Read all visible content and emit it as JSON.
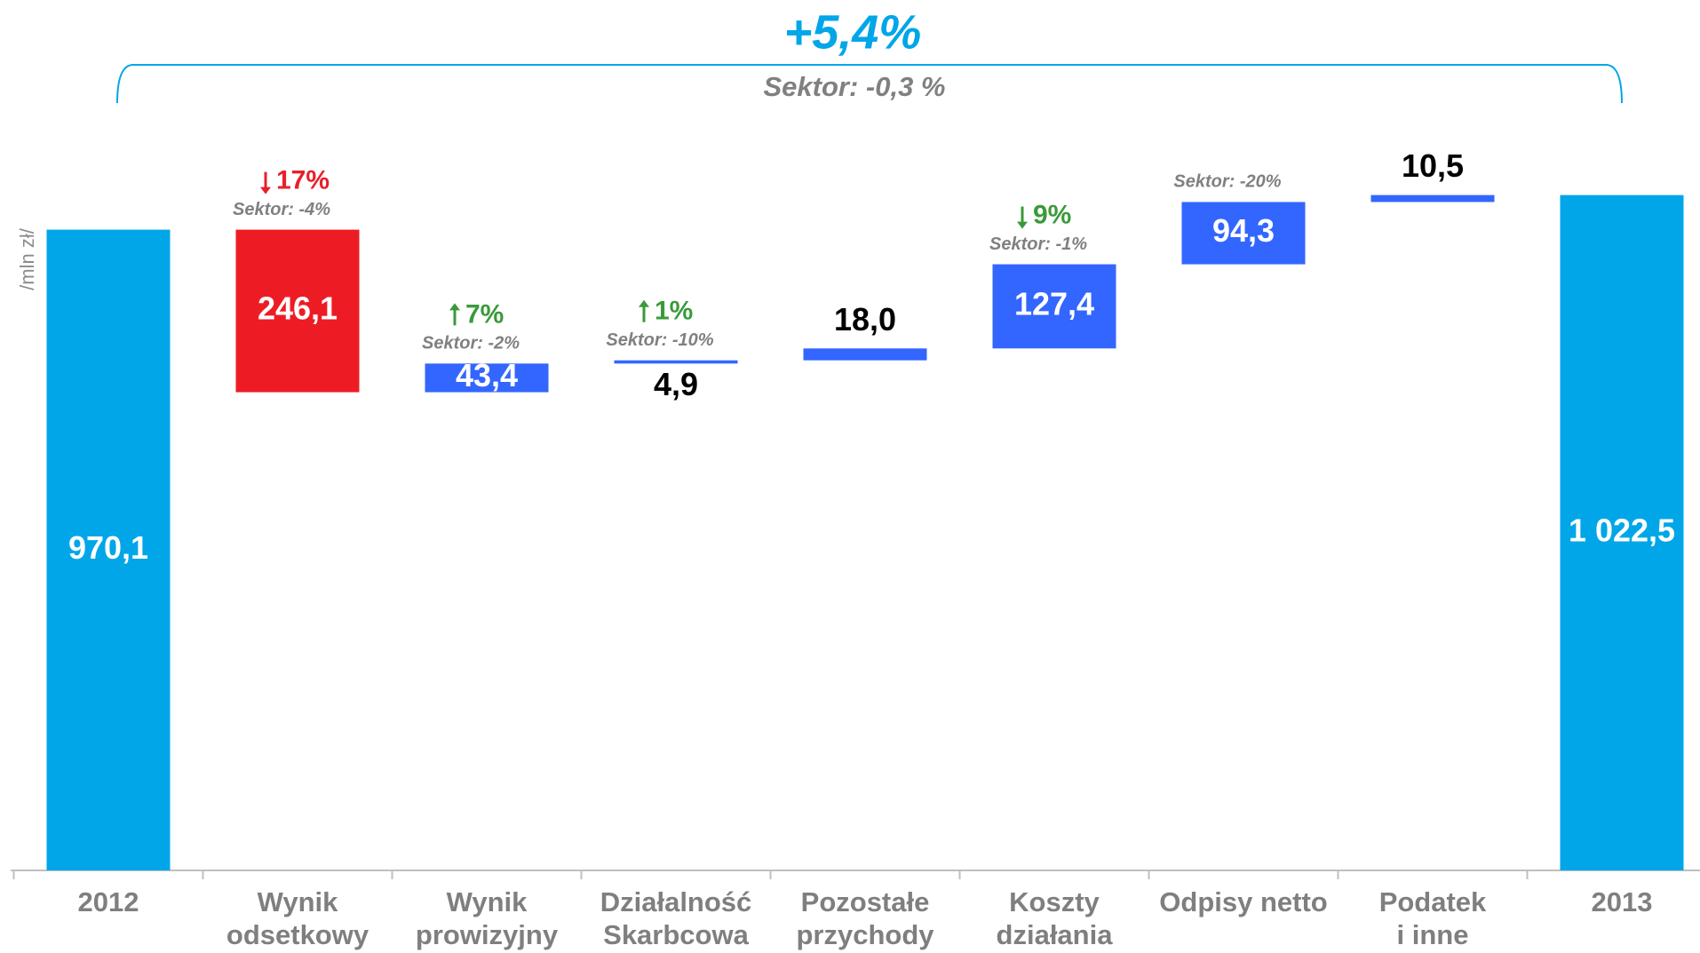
{
  "chart_data": {
    "type": "waterfall",
    "title": "+5,4%",
    "subtitle": "Sektor: -0,3 %",
    "y_label": "/mln zł/",
    "categories": [
      "2012",
      "Wynik\nodsetkowy",
      "Wynik\nprowizyjny",
      "Działalność\nSkarbcowa",
      "Pozostałe\nprzychody",
      "Koszty\ndziałania",
      "Odpisy netto",
      "Podatek\ni inne",
      "2013"
    ],
    "values": [
      970.1,
      -246.1,
      43.4,
      4.9,
      18.0,
      127.4,
      94.3,
      10.5,
      1022.5
    ],
    "value_labels": [
      "970,1",
      "246,1",
      "43,4",
      "4,9",
      "18,0",
      "127,4",
      "94,3",
      "10,5",
      "1 022,5"
    ],
    "bar_kinds": [
      "total",
      "delta",
      "delta",
      "delta",
      "delta",
      "delta",
      "delta",
      "delta",
      "total"
    ],
    "colors": [
      "#00a6e8",
      "#ed1c24",
      "#3366ff",
      "#3366ff",
      "#3366ff",
      "#3366ff",
      "#3366ff",
      "#3366ff",
      "#00a6e8"
    ],
    "label_positions": [
      "inside",
      "inside",
      "inside",
      "below",
      "above",
      "inside",
      "inside",
      "above",
      "inside"
    ],
    "change_labels": [
      null,
      "17%",
      "7%",
      "1%",
      null,
      "9%",
      null,
      null,
      null
    ],
    "change_directions": [
      null,
      "down",
      "up",
      "up",
      null,
      "down",
      null,
      null,
      null
    ],
    "change_colors": [
      null,
      "#e8202a",
      "#3a9a3a",
      "#3a9a3a",
      null,
      "#3a9a3a",
      null,
      null,
      null
    ],
    "sector_labels": [
      null,
      "Sektor: -4%",
      "Sektor: -2%",
      "Sektor: -10%",
      null,
      "Sektor: -1%",
      "Sektor: -20%",
      null,
      null
    ],
    "ylim": [
      0,
      1100
    ]
  }
}
